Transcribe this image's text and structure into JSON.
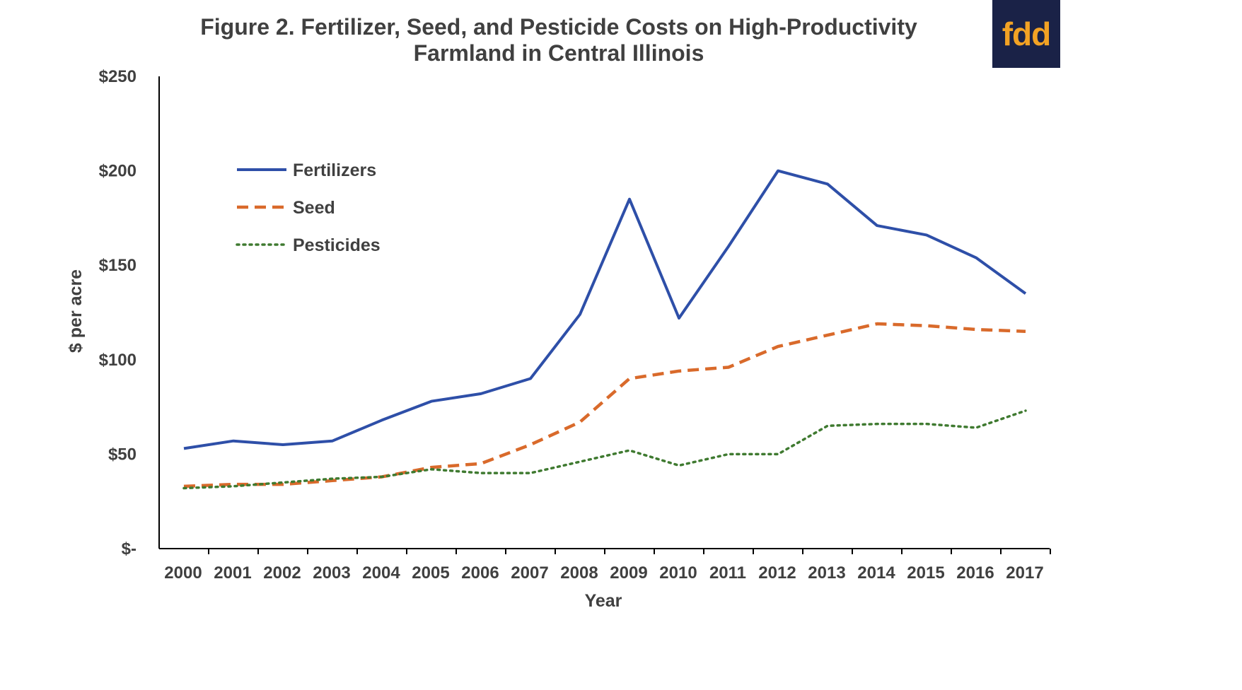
{
  "logo": {
    "text": "fdd",
    "bg_color": "#1a2247",
    "text_color": "#f2a224"
  },
  "chart_data": {
    "type": "line",
    "title_lines": [
      "Figure 2.  Fertilizer, Seed, and Pesticide Costs on High-Productivity",
      "Farmland in Central Illinois"
    ],
    "xlabel": "Year",
    "ylabel": "$ per acre",
    "categories": [
      "2000",
      "2001",
      "2002",
      "2003",
      "2004",
      "2005",
      "2006",
      "2007",
      "2008",
      "2009",
      "2010",
      "2011",
      "2012",
      "2013",
      "2014",
      "2015",
      "2016",
      "2017"
    ],
    "y_ticks": [
      {
        "value": 0,
        "label": "$-"
      },
      {
        "value": 50,
        "label": "$50"
      },
      {
        "value": 100,
        "label": "$100"
      },
      {
        "value": 150,
        "label": "$150"
      },
      {
        "value": 200,
        "label": "$200"
      },
      {
        "value": 250,
        "label": "$250"
      }
    ],
    "ylim": [
      0,
      250
    ],
    "grid": false,
    "legend_position": "top-left",
    "series": [
      {
        "name": "Fertilizers",
        "style": "solid",
        "color": "#2e4fa8",
        "values": [
          53,
          57,
          55,
          57,
          68,
          78,
          82,
          90,
          124,
          185,
          122,
          160,
          200,
          193,
          171,
          166,
          154,
          135
        ]
      },
      {
        "name": "Seed",
        "style": "dashed",
        "color": "#d96a2b",
        "values": [
          33,
          34,
          34,
          36,
          38,
          43,
          45,
          55,
          67,
          90,
          94,
          96,
          107,
          113,
          119,
          118,
          116,
          115
        ]
      },
      {
        "name": "Pesticides",
        "style": "dotted",
        "color": "#3f7a30",
        "values": [
          32,
          33,
          35,
          37,
          38,
          42,
          40,
          40,
          46,
          52,
          44,
          50,
          50,
          65,
          66,
          66,
          64,
          73
        ]
      }
    ]
  }
}
